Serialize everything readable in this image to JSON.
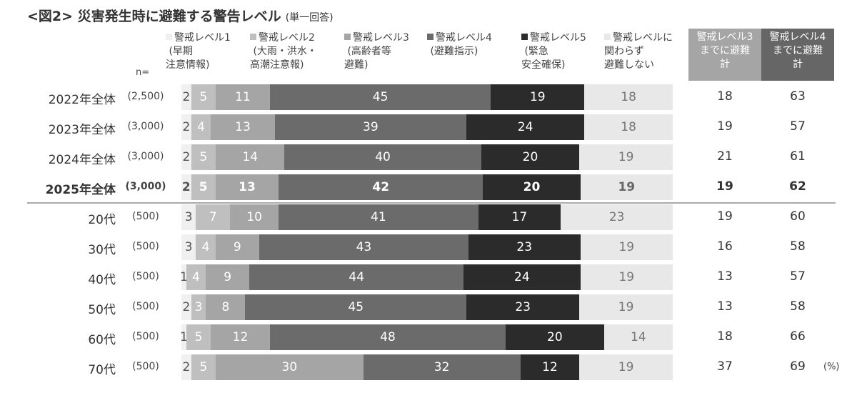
{
  "chart_data": {
    "type": "bar",
    "orientation": "horizontal-stacked-100",
    "title": "<図2> 災害発生時に避難する警告レベル",
    "subtitle": "(単一回答)",
    "n_label": "n=",
    "unit": "(%)",
    "series": [
      {
        "name": "警戒レベル1\n (早期\n注意情報)",
        "color": "#f0f0f0",
        "text_color": "#555555"
      },
      {
        "name": "警戒レベル2\n (大雨・洪水・\n高潮注意報)",
        "color": "#bfbfbf",
        "text_color": "#ffffff"
      },
      {
        "name": "警戒レベル3\n (高齢者等\n避難)",
        "color": "#a5a5a5",
        "text_color": "#ffffff"
      },
      {
        "name": "警戒レベル4\n (避難指示)",
        "color": "#6b6b6b",
        "text_color": "#ffffff"
      },
      {
        "name": "警戒レベル5\n (緊急\n安全確保)",
        "color": "#2b2b2b",
        "text_color": "#ffffff"
      },
      {
        "name": "警戒レベルに\n関わらず\n避難しない",
        "color": "#e8e8e8",
        "text_color": "#777777"
      }
    ],
    "totals_headers": [
      {
        "label": "警戒レベル3\nまでに避難\n計",
        "color": "#a5a5a5"
      },
      {
        "label": "警戒レベル4\nまでに避難\n計",
        "color": "#666666"
      }
    ],
    "rows": [
      {
        "label": "2022年全体",
        "n": "(2,500)",
        "values": [
          2,
          5,
          11,
          45,
          19,
          18
        ],
        "totals": [
          18,
          63
        ],
        "bold": false
      },
      {
        "label": "2023年全体",
        "n": "(3,000)",
        "values": [
          2,
          4,
          13,
          39,
          24,
          18
        ],
        "totals": [
          19,
          57
        ],
        "bold": false
      },
      {
        "label": "2024年全体",
        "n": "(3,000)",
        "values": [
          2,
          5,
          14,
          40,
          20,
          19
        ],
        "totals": [
          21,
          61
        ],
        "bold": false
      },
      {
        "label": "2025年全体",
        "n": "(3,000)",
        "values": [
          2,
          5,
          13,
          42,
          20,
          19
        ],
        "totals": [
          19,
          62
        ],
        "bold": true
      },
      {
        "label": "20代",
        "n": "(500)",
        "values": [
          3,
          7,
          10,
          41,
          17,
          23
        ],
        "totals": [
          19,
          60
        ],
        "bold": false
      },
      {
        "label": "30代",
        "n": "(500)",
        "values": [
          3,
          4,
          9,
          43,
          23,
          19
        ],
        "totals": [
          16,
          58
        ],
        "bold": false
      },
      {
        "label": "40代",
        "n": "(500)",
        "values": [
          1,
          4,
          9,
          44,
          24,
          19
        ],
        "totals": [
          13,
          57
        ],
        "bold": false
      },
      {
        "label": "50代",
        "n": "(500)",
        "values": [
          2,
          3,
          8,
          45,
          23,
          19
        ],
        "totals": [
          13,
          58
        ],
        "bold": false
      },
      {
        "label": "60代",
        "n": "(500)",
        "values": [
          1,
          5,
          12,
          48,
          20,
          14
        ],
        "totals": [
          18,
          66
        ],
        "bold": false
      },
      {
        "label": "70代",
        "n": "(500)",
        "values": [
          2,
          5,
          30,
          32,
          12,
          19
        ],
        "totals": [
          37,
          69
        ],
        "bold": false
      }
    ]
  }
}
